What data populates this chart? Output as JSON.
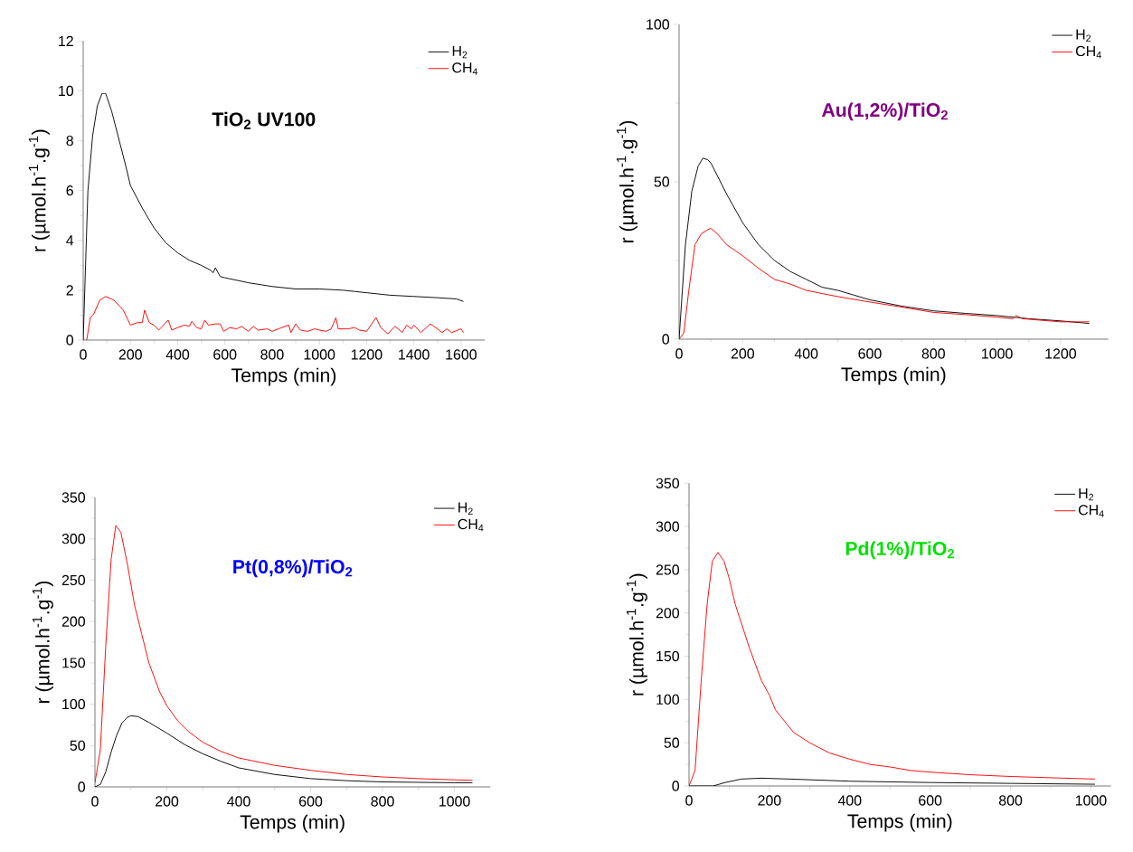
{
  "chart_data": [
    {
      "type": "line",
      "title": "**TiO$_{2}$ UV100**",
      "xlabel": "Temps (min)",
      "ylabel": "r (µmol.h$^{-1}$.g$^{-1}$)",
      "xlim": [
        0,
        1700
      ],
      "xticks": [
        0,
        200,
        400,
        600,
        800,
        1000,
        1200,
        1400,
        1600
      ],
      "ylim": [
        0,
        12
      ],
      "yticks": [
        0,
        2,
        4,
        6,
        8,
        10,
        12
      ],
      "legend": "top right",
      "grid": false,
      "series": [
        {
          "name": "H$_{2}$",
          "color": "#000000",
          "x": [
            0,
            10,
            20,
            40,
            60,
            80,
            95,
            120,
            150,
            180,
            200,
            250,
            300,
            350,
            400,
            450,
            500,
            540,
            550,
            560,
            580,
            600,
            700,
            800,
            900,
            1000,
            1100,
            1150,
            1200,
            1300,
            1400,
            1500,
            1580,
            1610
          ],
          "values": [
            0,
            3,
            6,
            8.2,
            9.4,
            9.9,
            9.9,
            9.2,
            8.1,
            7.0,
            6.2,
            5.3,
            4.5,
            3.9,
            3.5,
            3.2,
            3.0,
            2.8,
            2.7,
            2.9,
            2.55,
            2.5,
            2.3,
            2.15,
            2.05,
            2.05,
            2.0,
            1.95,
            1.9,
            1.8,
            1.75,
            1.7,
            1.65,
            1.55
          ]
        },
        {
          "name": "CH$_{4}$",
          "color": "#ff0000",
          "x": [
            15,
            30,
            45,
            70,
            95,
            130,
            170,
            200,
            230,
            250,
            260,
            280,
            300,
            320,
            340,
            360,
            375,
            400,
            430,
            450,
            460,
            480,
            500,
            515,
            530,
            560,
            580,
            595,
            620,
            650,
            670,
            700,
            720,
            740,
            780,
            800,
            840,
            870,
            880,
            900,
            920,
            950,
            980,
            1000,
            1030,
            1050,
            1070,
            1080,
            1120,
            1150,
            1170,
            1200,
            1240,
            1260,
            1290,
            1320,
            1340,
            1350,
            1370,
            1390,
            1400,
            1430,
            1470,
            1500,
            1520,
            1540,
            1560,
            1600,
            1610
          ],
          "values": [
            0,
            0.9,
            1.05,
            1.6,
            1.75,
            1.6,
            1.2,
            0.6,
            0.7,
            0.7,
            1.2,
            0.7,
            0.6,
            0.4,
            0.6,
            0.8,
            0.4,
            0.5,
            0.6,
            0.55,
            0.75,
            0.5,
            0.45,
            0.8,
            0.6,
            0.65,
            0.65,
            0.35,
            0.5,
            0.45,
            0.55,
            0.35,
            0.55,
            0.4,
            0.45,
            0.35,
            0.5,
            0.6,
            0.3,
            0.65,
            0.4,
            0.35,
            0.45,
            0.4,
            0.35,
            0.45,
            0.9,
            0.45,
            0.45,
            0.5,
            0.4,
            0.35,
            0.9,
            0.5,
            0.25,
            0.55,
            0.4,
            0.3,
            0.6,
            0.45,
            0.6,
            0.3,
            0.65,
            0.45,
            0.3,
            0.45,
            0.3,
            0.45,
            0.3
          ]
        }
      ]
    },
    {
      "type": "line",
      "title": "**Au(1,2%)/TiO$_{2}$**",
      "xlabel": "Temps (min)",
      "ylabel": "r (µmol.h$^{-1}$.g$^{-1}$)",
      "xlim": [
        0,
        1350
      ],
      "xticks": [
        0,
        200,
        400,
        600,
        800,
        1000,
        1200
      ],
      "ylim": [
        0,
        100
      ],
      "yticks": [
        0,
        50,
        100
      ],
      "legend": "top right",
      "grid": false,
      "series": [
        {
          "name": "H$_{2}$",
          "color": "#000000",
          "x": [
            0,
            20,
            40,
            60,
            75,
            90,
            100,
            150,
            200,
            250,
            300,
            350,
            400,
            450,
            500,
            550,
            600,
            700,
            800,
            900,
            1000,
            1100,
            1200,
            1290
          ],
          "values": [
            0,
            30,
            47,
            55,
            57.5,
            57,
            56,
            46,
            37,
            30,
            25,
            21.5,
            19,
            16.5,
            15.5,
            14,
            12.5,
            10.5,
            9,
            8.2,
            7.5,
            6.5,
            5.8,
            5.0
          ]
        },
        {
          "name": "CH$_{4}$",
          "color": "#ff0000",
          "x": [
            0,
            15,
            30,
            50,
            70,
            90,
            100,
            120,
            150,
            200,
            250,
            300,
            350,
            400,
            450,
            500,
            600,
            700,
            800,
            900,
            1000,
            1050,
            1060,
            1080,
            1200,
            1290
          ],
          "values": [
            0,
            2,
            15,
            30,
            33.5,
            34.8,
            35.2,
            33.5,
            30,
            26.5,
            22.5,
            19,
            17.5,
            15.5,
            14.5,
            13.5,
            11.8,
            10.2,
            8.5,
            7.8,
            7,
            6.5,
            7.5,
            6.5,
            5.5,
            5.5
          ]
        }
      ]
    },
    {
      "type": "line",
      "title": "**Pt(0,8%)/TiO$_{2}$**",
      "xlabel": "Temps (min)",
      "ylabel": "r (µmol.h$^{-1}$.g$^{-1}$)",
      "xlim": [
        0,
        1100
      ],
      "xticks": [
        0,
        200,
        400,
        600,
        800,
        1000
      ],
      "ylim": [
        0,
        350
      ],
      "yticks": [
        0,
        50,
        100,
        150,
        200,
        250,
        300,
        350
      ],
      "legend": "top right",
      "grid": false,
      "series": [
        {
          "name": "H$_{2}$",
          "color": "#000000",
          "x": [
            0,
            15,
            30,
            45,
            60,
            75,
            90,
            100,
            120,
            150,
            200,
            250,
            300,
            350,
            400,
            500,
            600,
            700,
            800,
            900,
            1000,
            1050
          ],
          "values": [
            0,
            3,
            18,
            42,
            62,
            77,
            84,
            86,
            85,
            78,
            65,
            51,
            40,
            31,
            23,
            15,
            10,
            7.5,
            6,
            5.5,
            5,
            5
          ]
        },
        {
          "name": "CH$_{4}$",
          "color": "#ff0000",
          "x": [
            0,
            15,
            30,
            45,
            58,
            72,
            90,
            110,
            130,
            150,
            180,
            200,
            230,
            260,
            300,
            350,
            400,
            500,
            600,
            700,
            800,
            900,
            1000,
            1050
          ],
          "values": [
            5,
            45,
            170,
            275,
            316,
            308,
            270,
            220,
            185,
            150,
            115,
            98,
            80,
            67,
            54,
            43,
            35,
            26,
            20,
            15,
            12,
            10,
            8.5,
            8
          ]
        }
      ]
    },
    {
      "type": "line",
      "title": "**Pd(1%)/TiO$_{2}$**",
      "xlabel": "Temps (min)",
      "ylabel": "r (µmol.h$^{-1}$.g$^{-1}$)",
      "xlim": [
        0,
        1050
      ],
      "xticks": [
        0,
        200,
        400,
        600,
        800,
        1000
      ],
      "ylim": [
        0,
        350
      ],
      "yticks": [
        0,
        50,
        100,
        150,
        200,
        250,
        300,
        350
      ],
      "legend": "top right",
      "grid": false,
      "series": [
        {
          "name": "H$_{2}$",
          "color": "#000000",
          "x": [
            0,
            60,
            90,
            130,
            180,
            250,
            400,
            600,
            800,
            1010
          ],
          "values": [
            0,
            0,
            4,
            8,
            9,
            8,
            5.5,
            4,
            3,
            2
          ]
        },
        {
          "name": "CH$_{4}$",
          "color": "#ff0000",
          "x": [
            0,
            15,
            30,
            45,
            58,
            72,
            87,
            100,
            115,
            150,
            180,
            200,
            215,
            260,
            300,
            350,
            400,
            450,
            500,
            550,
            600,
            700,
            800,
            900,
            1010
          ],
          "values": [
            0,
            18,
            120,
            210,
            260,
            270,
            260,
            240,
            210,
            160,
            122,
            105,
            88,
            62,
            50,
            38,
            31,
            25,
            22,
            18,
            16,
            13,
            11,
            9.5,
            8
          ]
        }
      ]
    }
  ]
}
